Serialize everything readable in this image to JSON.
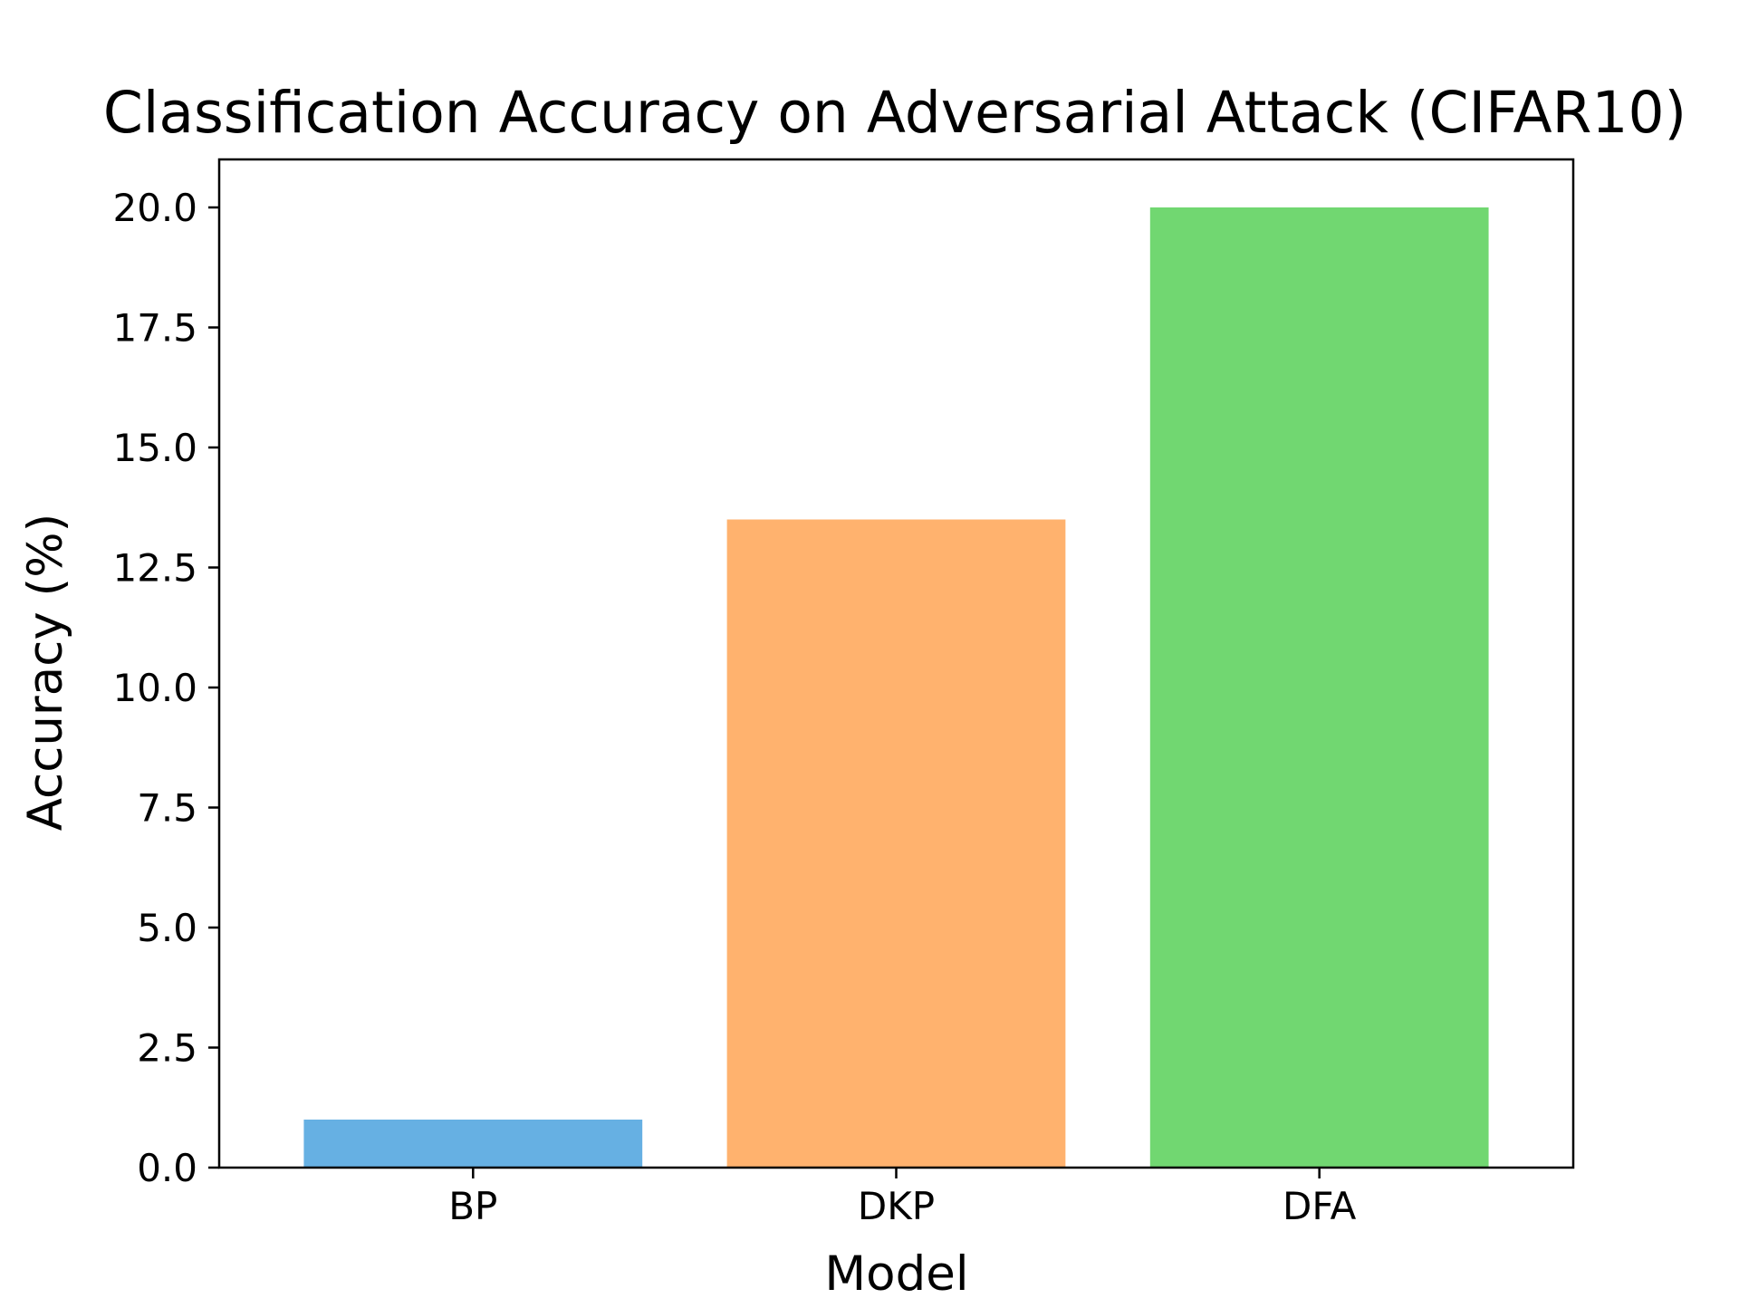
{
  "chart_data": {
    "type": "bar",
    "title": "Classification Accuracy on Adversarial Attack (CIFAR10)",
    "xlabel": "Model",
    "ylabel": "Accuracy (%)",
    "categories": [
      "BP",
      "DKP",
      "DFA"
    ],
    "values": [
      1.0,
      13.5,
      20.0
    ],
    "colors": [
      "#66b0e3",
      "#ffb26e",
      "#71d771"
    ],
    "ylim": [
      0,
      21
    ],
    "yticks": [
      0.0,
      2.5,
      5.0,
      7.5,
      10.0,
      12.5,
      15.0,
      17.5,
      20.0
    ],
    "ytick_labels": [
      "0.0",
      "2.5",
      "5.0",
      "7.5",
      "10.0",
      "12.5",
      "15.0",
      "17.5",
      "20.0"
    ],
    "grid": false,
    "legend": false
  }
}
